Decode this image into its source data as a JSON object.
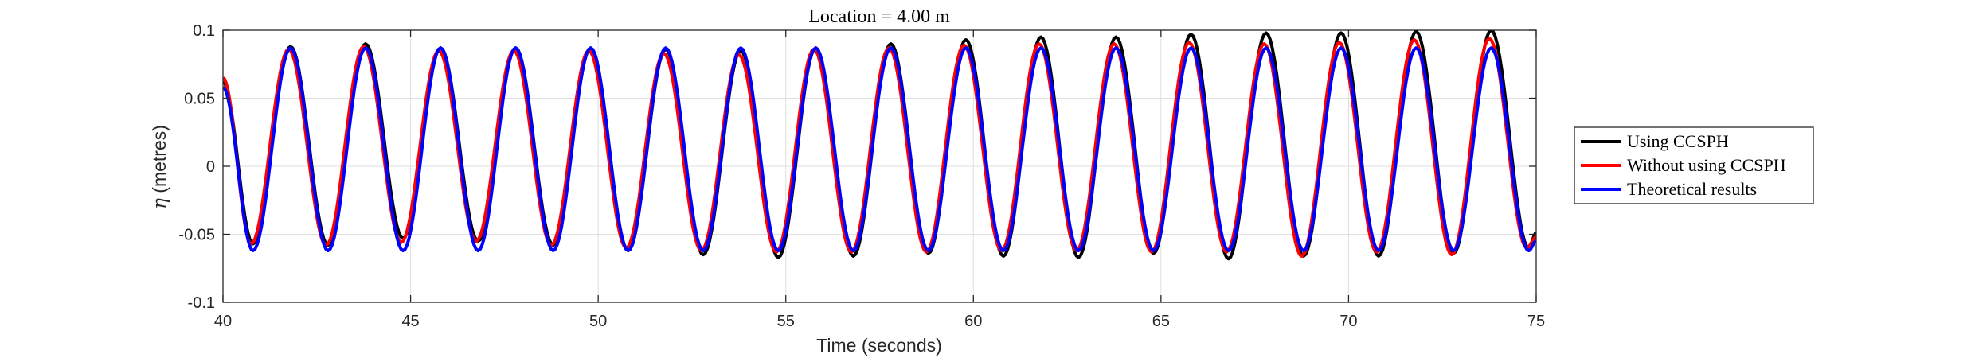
{
  "chart_data": {
    "type": "line",
    "title": "Location = 4.00 m",
    "xlabel": "Time (seconds)",
    "ylabel_symbol": "η",
    "ylabel_text": " (metres)",
    "xlim": [
      40,
      75
    ],
    "ylim": [
      -0.1,
      0.1
    ],
    "xticks": [
      40,
      45,
      50,
      55,
      60,
      65,
      70,
      75
    ],
    "yticks": [
      -0.1,
      -0.05,
      0,
      0.05,
      0.1
    ],
    "xtick_labels": [
      "40",
      "45",
      "50",
      "55",
      "60",
      "65",
      "70",
      "75"
    ],
    "ytick_labels": [
      "-0.1",
      "-0.05",
      "0",
      "0.05",
      "0.1"
    ],
    "grid": true,
    "legend_position": "right-outside",
    "wave_period": 2.0,
    "series": [
      {
        "name": "Using CCSPH",
        "color": "#000000",
        "crest_times": [
          41.8,
          43.8,
          45.8,
          47.8,
          49.8,
          51.8,
          53.8,
          55.8,
          57.8,
          59.8,
          61.8,
          63.8,
          65.8,
          67.8,
          69.8,
          71.8,
          73.8
        ],
        "crests": [
          0.088,
          0.09,
          0.087,
          0.087,
          0.087,
          0.086,
          0.085,
          0.087,
          0.09,
          0.093,
          0.095,
          0.095,
          0.097,
          0.098,
          0.098,
          0.099,
          0.1
        ],
        "troughs": [
          -0.057,
          -0.058,
          -0.053,
          -0.055,
          -0.058,
          -0.062,
          -0.065,
          -0.067,
          -0.066,
          -0.064,
          -0.066,
          -0.067,
          -0.064,
          -0.068,
          -0.066,
          -0.066,
          -0.064,
          -0.06
        ],
        "start_value": 0.062,
        "end_value": -0.049
      },
      {
        "name": "Without using CCSPH",
        "color": "#ff0000",
        "crest_times": [
          41.75,
          43.75,
          45.75,
          47.75,
          49.75,
          51.75,
          53.75,
          55.75,
          57.75,
          59.75,
          61.75,
          63.75,
          65.75,
          67.75,
          69.75,
          71.75,
          73.75
        ],
        "crests": [
          0.086,
          0.088,
          0.085,
          0.085,
          0.085,
          0.083,
          0.082,
          0.086,
          0.087,
          0.089,
          0.09,
          0.09,
          0.091,
          0.09,
          0.091,
          0.093,
          0.094
        ],
        "troughs": [
          -0.057,
          -0.058,
          -0.056,
          -0.055,
          -0.058,
          -0.06,
          -0.062,
          -0.063,
          -0.063,
          -0.063,
          -0.062,
          -0.062,
          -0.063,
          -0.063,
          -0.066,
          -0.063,
          -0.065,
          -0.06
        ],
        "start_value": 0.065,
        "end_value": -0.052
      },
      {
        "name": "Theoretical results",
        "color": "#0000ff",
        "crest_times": [
          41.8,
          43.8,
          45.8,
          47.8,
          49.8,
          51.8,
          53.8,
          55.8,
          57.8,
          59.8,
          61.8,
          63.8,
          65.8,
          67.8,
          69.8,
          71.8,
          73.8
        ],
        "crests": [
          0.087,
          0.087,
          0.087,
          0.087,
          0.087,
          0.087,
          0.087,
          0.087,
          0.087,
          0.087,
          0.087,
          0.087,
          0.087,
          0.087,
          0.087,
          0.087,
          0.087
        ],
        "troughs": [
          -0.062,
          -0.062,
          -0.062,
          -0.062,
          -0.062,
          -0.062,
          -0.062,
          -0.062,
          -0.062,
          -0.062,
          -0.062,
          -0.062,
          -0.062,
          -0.062,
          -0.062,
          -0.062,
          -0.062,
          -0.062
        ],
        "start_value": 0.058,
        "end_value": -0.055
      }
    ]
  }
}
